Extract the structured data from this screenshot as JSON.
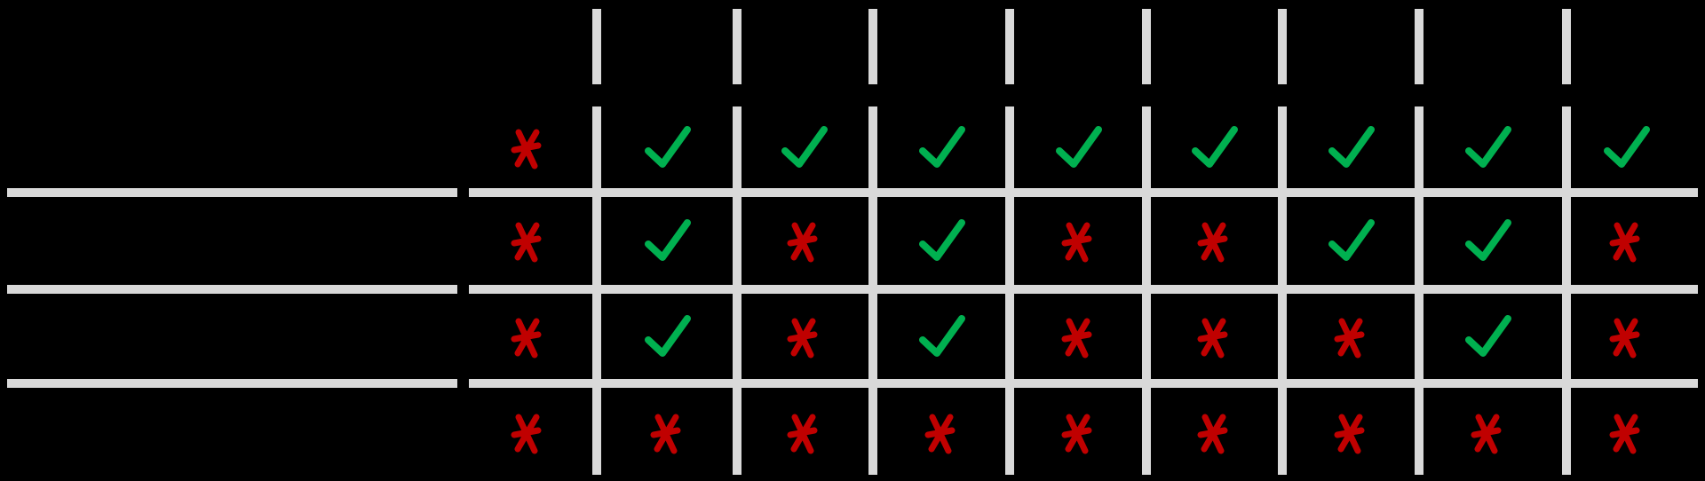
{
  "palette": {
    "background": "#000000",
    "grid_line": "#d9d9d9",
    "check": "#00b050",
    "cross": "#c00000"
  },
  "matrix": {
    "row_labels": [
      "",
      "",
      "",
      ""
    ],
    "column_labels": [
      "",
      "",
      "",
      "",
      "",
      "",
      "",
      "",
      ""
    ],
    "rows": [
      [
        "cross",
        "check",
        "check",
        "check",
        "check",
        "check",
        "check",
        "check",
        "check"
      ],
      [
        "cross",
        "check",
        "cross",
        "check",
        "cross",
        "cross",
        "check",
        "check",
        "cross"
      ],
      [
        "cross",
        "check",
        "cross",
        "check",
        "cross",
        "cross",
        "cross",
        "check",
        "cross"
      ],
      [
        "cross",
        "cross",
        "cross",
        "cross",
        "cross",
        "cross",
        "cross",
        "cross",
        "cross"
      ]
    ]
  }
}
